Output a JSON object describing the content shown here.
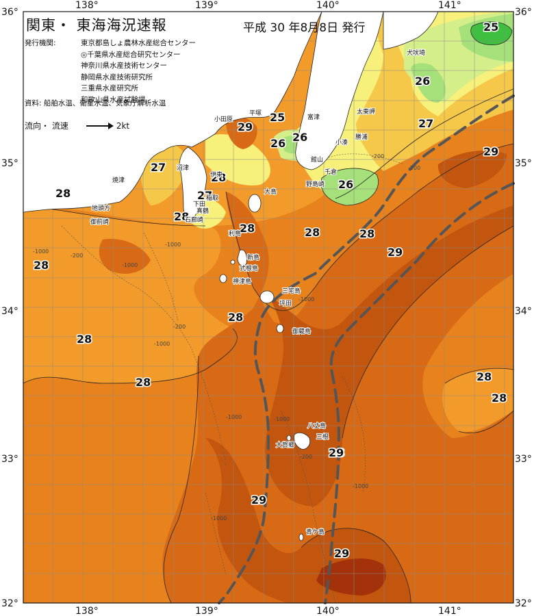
{
  "title": "関東・ 東海海況速報",
  "issue_date": "平成 30 年8月8日 発行",
  "issuer_label": "発行機関:",
  "issuers": [
    "東京都島しょ農林水産総合センター",
    "◎千葉県水産総合研究センター",
    "神奈川県水産技術センター",
    "静岡県水産技術研究所",
    "三重県水産研究所",
    "和歌山県水産試験場"
  ],
  "source": "資料: 船舶水温、衛星水温、気象庁解析水温",
  "legend": {
    "label": "流向・ 流速",
    "value": "2kt"
  },
  "axes": {
    "lon_top": [
      "138°",
      "139°",
      "140°",
      "141°"
    ],
    "lon_bottom": [
      "138°",
      "139°",
      "140°",
      "141°"
    ],
    "lat_left": [
      "36°",
      "35°",
      "34°",
      "33°",
      "32°"
    ],
    "lat_right": [
      "36°",
      "35°",
      "34°",
      "33°",
      "32°"
    ]
  },
  "colors": {
    "t25": "#3fbf3f",
    "t26": "#a6e07a",
    "t26b": "#d4ee8a",
    "t27": "#f7f07a",
    "t27b": "#f5c84a",
    "t28a": "#f29a2a",
    "t28b": "#e8821c",
    "t29a": "#d86a16",
    "t29b": "#c2560f",
    "t30": "#a3320a",
    "t30b": "#8a2208",
    "land": "#ffffff",
    "kuroshio": "#555555"
  },
  "temps": [
    {
      "t": "25"
    },
    {
      "t": "26"
    },
    {
      "t": "27"
    },
    {
      "t": "29"
    },
    {
      "t": "28"
    },
    {
      "t": "27"
    },
    {
      "t": "28"
    },
    {
      "t": "25"
    },
    {
      "t": "29"
    },
    {
      "t": "26"
    },
    {
      "t": "26"
    },
    {
      "t": "28"
    },
    {
      "t": "27"
    },
    {
      "t": "28"
    },
    {
      "t": "26"
    },
    {
      "t": "28"
    },
    {
      "t": "28"
    },
    {
      "t": "28"
    },
    {
      "t": "29"
    },
    {
      "t": "28"
    },
    {
      "t": "28"
    },
    {
      "t": "28"
    },
    {
      "t": "28"
    },
    {
      "t": "28"
    },
    {
      "t": "28"
    },
    {
      "t": "29"
    },
    {
      "t": "29"
    },
    {
      "t": "29"
    }
  ],
  "places": [
    "犬吠埼",
    "太東岬",
    "勝浦",
    "小湊",
    "館山",
    "千倉",
    "野島崎",
    "富津",
    "平塚",
    "小田原",
    "真鶴",
    "沼津",
    "焼津",
    "地頭方",
    "御前崎",
    "伊東",
    "稲取",
    "石廊崎",
    "下田",
    "大島",
    "利島",
    "新島",
    "式根島",
    "神津島",
    "三宅島",
    "坪田",
    "御蔵島",
    "八丈島",
    "三根",
    "大賀郷",
    "青ケ島"
  ],
  "depths": [
    "-1000",
    "-200",
    "-1000",
    "-1000",
    "-200",
    "-200",
    "-1000",
    "-1000",
    "-1000",
    "-200",
    "-1000",
    "-1000",
    "-200",
    "-1000"
  ]
}
